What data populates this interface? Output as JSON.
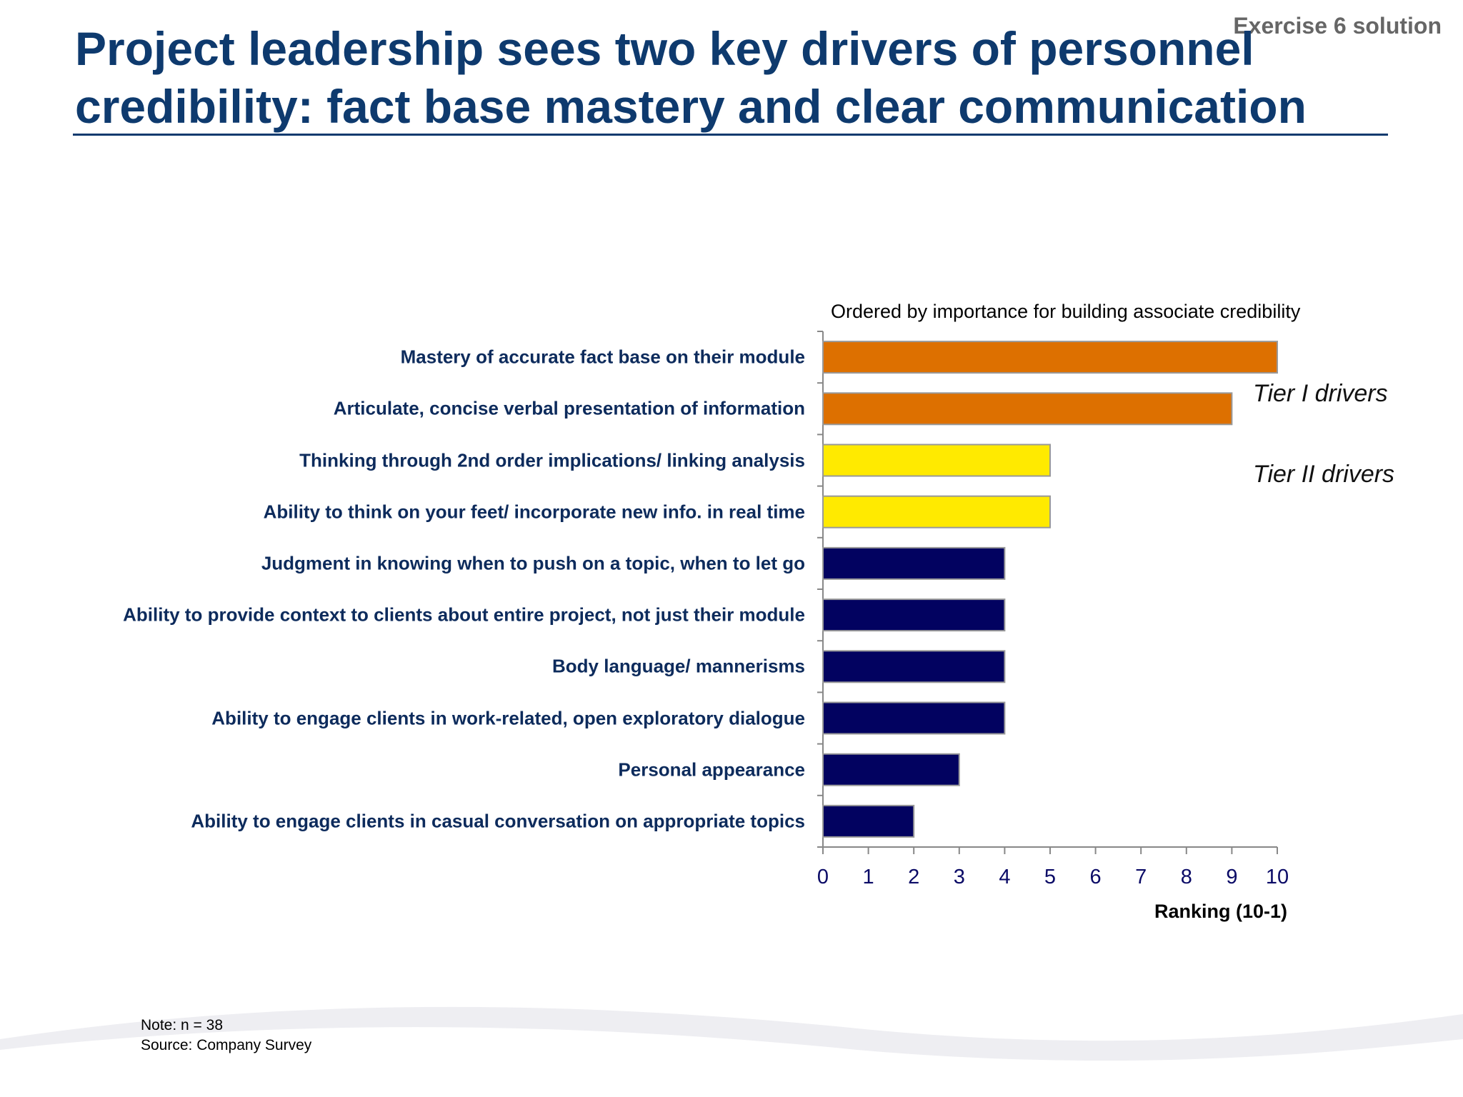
{
  "header": {
    "exercise_label": "Exercise 6 solution",
    "title": "Project leadership sees two key drivers of personnel credibility: fact base mastery and clear communication"
  },
  "chart_data": {
    "type": "bar",
    "orientation": "horizontal",
    "subtitle": "Ordered by importance for building  associate credibility",
    "xlabel": "Ranking (10-1)",
    "xlim": [
      0,
      10
    ],
    "xticks": [
      "0",
      "1",
      "2",
      "3",
      "4",
      "5",
      "6",
      "7",
      "8",
      "9",
      "10"
    ],
    "grid": false,
    "categories": [
      "Mastery of accurate fact base on their module",
      "Articulate, concise verbal presentation of information",
      "Thinking through 2nd order implications/ linking analysis",
      "Ability to think on your feet/ incorporate new info. in real time",
      "Judgment in knowing when to push on a topic, when to let go",
      "Ability to provide context to clients about entire project, not just their module",
      "Body language/ mannerisms",
      "Ability to engage clients in work-related, open exploratory dialogue",
      "Personal appearance",
      "Ability to engage clients in casual conversation on appropriate topics"
    ],
    "values": [
      10,
      9,
      5,
      5,
      4,
      4,
      4,
      4,
      3,
      2
    ],
    "bar_colors": [
      "#dd7000",
      "#dd7000",
      "#ffea00",
      "#ffea00",
      "#020260",
      "#020260",
      "#020260",
      "#020260",
      "#020260",
      "#020260"
    ],
    "annotations": [
      "Tier I drivers",
      "Tier II drivers"
    ]
  },
  "footer": {
    "note": "Note:     n = 38",
    "source": "Source: Company Survey"
  }
}
